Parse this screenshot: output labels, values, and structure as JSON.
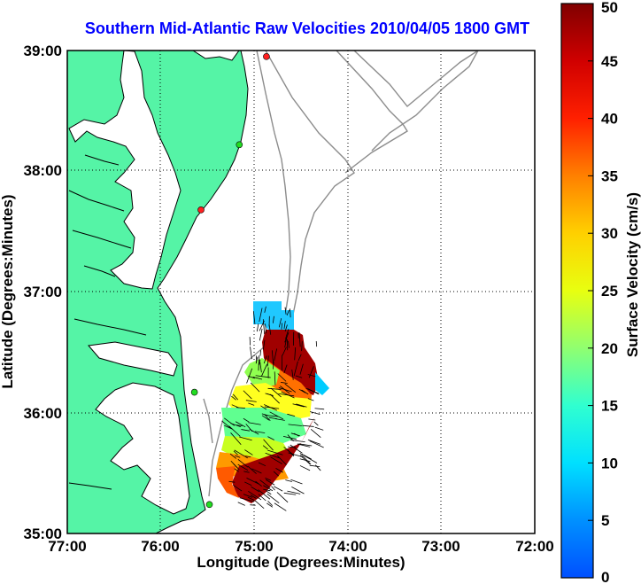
{
  "title": "Southern Mid-Atlantic Raw Velocities 2010/04/05 1800 GMT",
  "map": {
    "x_axis_label": "Longitude (Degrees:Minutes)",
    "y_axis_label": "Latitude (Degrees:Minutes)",
    "x_ticks": [
      "77:00",
      "76:00",
      "75:00",
      "74:00",
      "73:00",
      "72:00"
    ],
    "y_ticks": [
      "39:00",
      "38:00",
      "37:00",
      "36:00",
      "35:00"
    ],
    "lon_range_deg_west": [
      77,
      72
    ],
    "lat_range_deg_north": [
      35,
      39
    ],
    "grid": "dotted",
    "colors": {
      "land": "#55f4a6",
      "water": "#ffffff",
      "bathymetry_contours": "#8c8c8c",
      "vectors": "#000000",
      "station_active": "#22dd22",
      "station_inactive": "#ff2020"
    },
    "stations": [
      {
        "lon": -74.87,
        "lat": 38.95,
        "status": "inactive"
      },
      {
        "lon": -75.16,
        "lat": 38.22,
        "status": "active"
      },
      {
        "lon": -75.57,
        "lat": 37.68,
        "status": "inactive"
      },
      {
        "lon": -75.64,
        "lat": 36.17,
        "status": "active"
      },
      {
        "lon": -75.48,
        "lat": 35.24,
        "status": "active"
      }
    ]
  },
  "colorbar": {
    "label": "Surface Velocity (cm/s)",
    "ticks": [
      "0",
      "5",
      "10",
      "15",
      "20",
      "25",
      "30",
      "35",
      "40",
      "45",
      "50"
    ],
    "min": 0,
    "max": 50
  }
}
